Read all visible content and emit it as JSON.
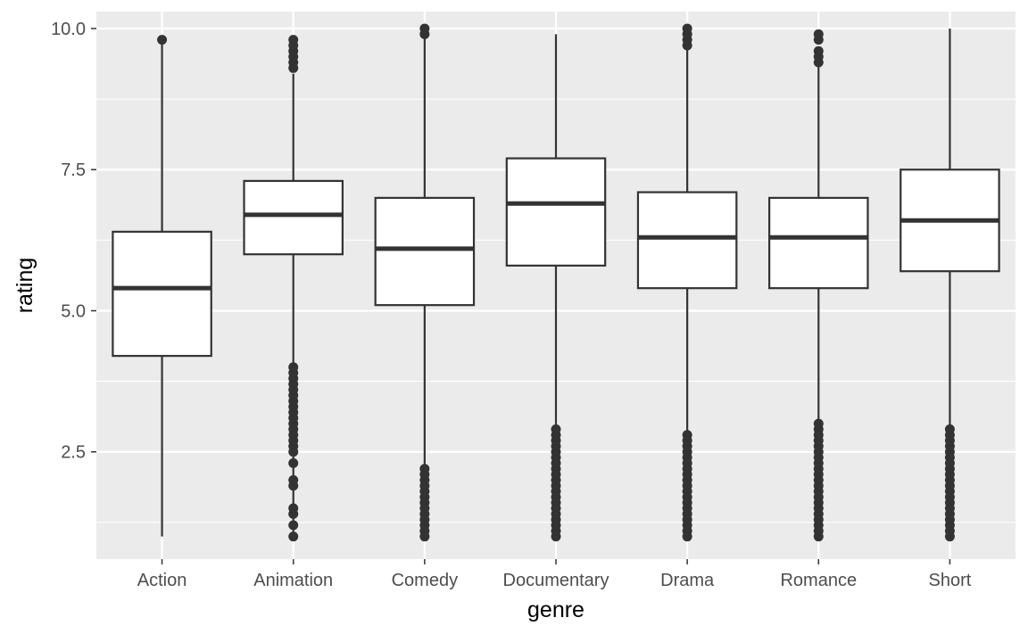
{
  "chart_data": {
    "type": "boxplot",
    "title": "",
    "xlabel": "genre",
    "ylabel": "rating",
    "categories": [
      "Action",
      "Animation",
      "Comedy",
      "Documentary",
      "Drama",
      "Romance",
      "Short"
    ],
    "ylim": [
      0.6,
      10.3
    ],
    "y_ticks": [
      2.5,
      5.0,
      7.5,
      10.0
    ],
    "y_tick_labels": [
      "2.5",
      "5.0",
      "7.5",
      "10.0"
    ],
    "grid": true,
    "colors": {
      "panel": "#EBEBEB",
      "grid": "#FFFFFF",
      "box_line": "#333333",
      "box_fill": "#FFFFFF"
    },
    "boxes": [
      {
        "category": "Action",
        "low": 1.0,
        "q1": 4.2,
        "median": 5.4,
        "q3": 6.4,
        "high": 9.8,
        "outliers": [
          9.8
        ]
      },
      {
        "category": "Animation",
        "low": 1.0,
        "q1": 6.0,
        "median": 6.7,
        "q3": 7.3,
        "high": 9.2,
        "outliers": [
          1.0,
          1.2,
          1.4,
          1.5,
          1.9,
          2.0,
          2.3,
          2.5,
          2.6,
          2.7,
          2.8,
          2.9,
          3.0,
          3.1,
          3.2,
          3.3,
          3.4,
          3.5,
          3.6,
          3.7,
          3.8,
          3.9,
          4.0,
          9.3,
          9.4,
          9.5,
          9.6,
          9.7,
          9.8
        ]
      },
      {
        "category": "Comedy",
        "low": 1.0,
        "q1": 5.1,
        "median": 6.1,
        "q3": 7.0,
        "high": 9.9,
        "outliers": [
          1.0,
          1.1,
          1.2,
          1.3,
          1.4,
          1.5,
          1.6,
          1.7,
          1.8,
          1.9,
          2.0,
          2.1,
          2.2,
          9.9,
          10.0
        ]
      },
      {
        "category": "Documentary",
        "low": 1.0,
        "q1": 5.8,
        "median": 6.9,
        "q3": 7.7,
        "high": 9.9,
        "outliers": [
          1.0,
          1.1,
          1.2,
          1.3,
          1.4,
          1.5,
          1.6,
          1.7,
          1.8,
          1.9,
          2.0,
          2.1,
          2.2,
          2.3,
          2.4,
          2.5,
          2.6,
          2.7,
          2.8,
          2.9
        ]
      },
      {
        "category": "Drama",
        "low": 1.0,
        "q1": 5.4,
        "median": 6.3,
        "q3": 7.1,
        "high": 9.7,
        "outliers": [
          1.0,
          1.1,
          1.2,
          1.3,
          1.4,
          1.5,
          1.6,
          1.7,
          1.8,
          1.9,
          2.0,
          2.1,
          2.2,
          2.3,
          2.4,
          2.5,
          2.6,
          2.7,
          2.8,
          9.7,
          9.8,
          9.9,
          10.0
        ]
      },
      {
        "category": "Romance",
        "low": 1.0,
        "q1": 5.4,
        "median": 6.3,
        "q3": 7.0,
        "high": 9.4,
        "outliers": [
          1.0,
          1.1,
          1.2,
          1.3,
          1.4,
          1.5,
          1.6,
          1.7,
          1.8,
          1.9,
          2.0,
          2.1,
          2.2,
          2.3,
          2.4,
          2.5,
          2.6,
          2.7,
          2.8,
          2.9,
          3.0,
          9.4,
          9.5,
          9.6,
          9.8,
          9.9
        ]
      },
      {
        "category": "Short",
        "low": 1.0,
        "q1": 5.7,
        "median": 6.6,
        "q3": 7.5,
        "high": 10.0,
        "outliers": [
          1.0,
          1.1,
          1.2,
          1.3,
          1.4,
          1.5,
          1.6,
          1.7,
          1.8,
          1.9,
          2.0,
          2.1,
          2.2,
          2.3,
          2.4,
          2.5,
          2.6,
          2.7,
          2.8,
          2.9
        ]
      }
    ]
  }
}
